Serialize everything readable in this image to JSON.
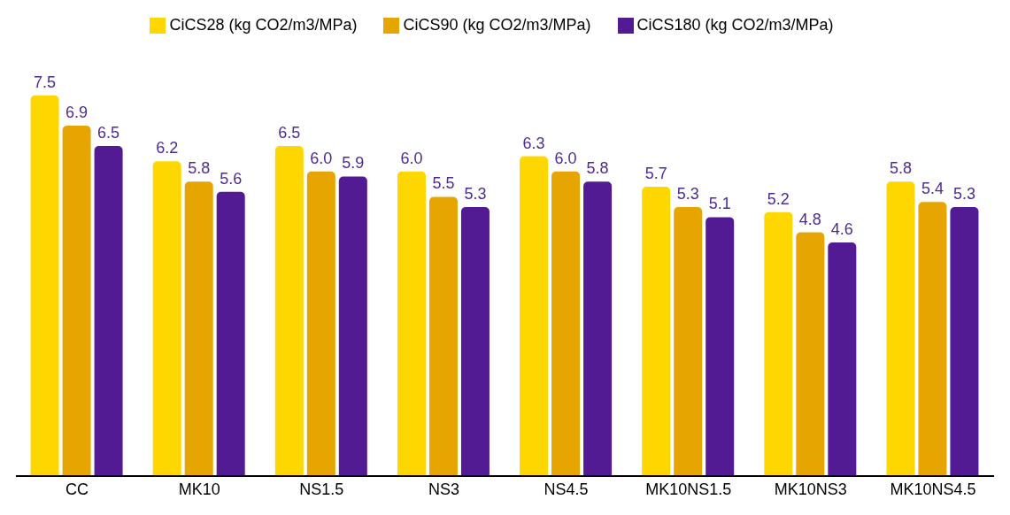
{
  "chart_data": {
    "type": "bar",
    "categories": [
      "CC",
      "MK10",
      "NS1.5",
      "NS3",
      "NS4.5",
      "MK10NS1.5",
      "MK10NS3",
      "MK10NS4.5"
    ],
    "series": [
      {
        "name": "CiCS28 (kg CO2/m3/MPa)",
        "color": "#ffd700",
        "values": [
          7.5,
          6.2,
          6.5,
          6.0,
          6.3,
          5.7,
          5.2,
          5.8
        ],
        "value_labels": [
          "7.5",
          "6.2",
          "6.5",
          "6.0",
          "6.3",
          "5.7",
          "5.2",
          "5.8"
        ]
      },
      {
        "name": "CiCS90 (kg CO2/m3/MPa)",
        "color": "#e6a500",
        "values": [
          6.9,
          5.8,
          6.0,
          5.5,
          6.0,
          5.3,
          4.8,
          5.4
        ],
        "value_labels": [
          "6.9",
          "5.8",
          "6.0",
          "5.5",
          "6.0",
          "5.3",
          "4.8",
          "5.4"
        ]
      },
      {
        "name": "CiCS180 (kg CO2/m3/MPa)",
        "color": "#531b93",
        "values": [
          6.5,
          5.6,
          5.9,
          5.3,
          5.8,
          5.1,
          4.6,
          5.3
        ],
        "value_labels": [
          "6.5",
          "5.6",
          "5.9",
          "5.3",
          "5.8",
          "5.1",
          "4.6",
          "5.3"
        ]
      }
    ],
    "legend": "top",
    "grid": false
  }
}
